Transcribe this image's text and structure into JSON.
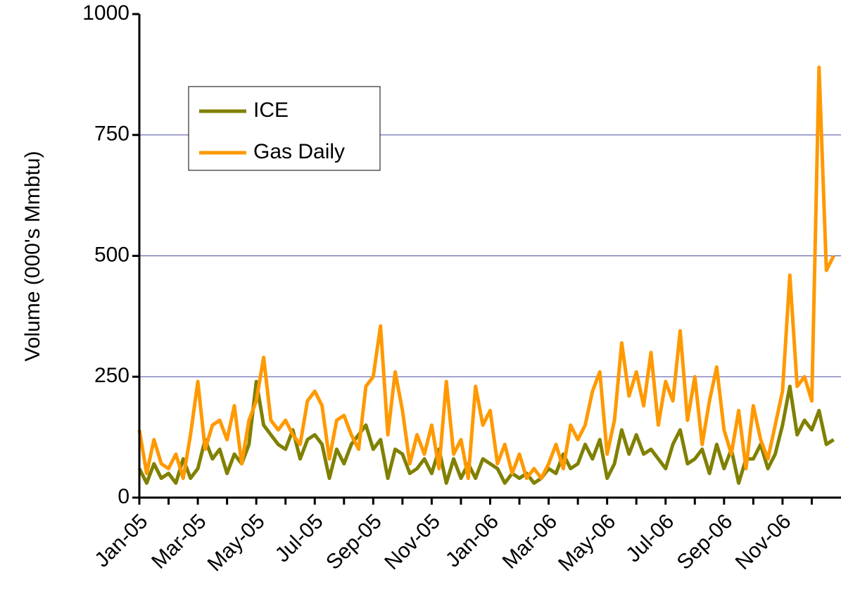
{
  "chart_data": {
    "type": "line",
    "y_label": "Volume (000's Mmbtu)",
    "categories": [
      "Jan-05",
      null,
      null,
      null,
      null,
      null,
      null,
      null,
      "Mar-05",
      null,
      null,
      null,
      null,
      null,
      null,
      null,
      "May-05",
      null,
      null,
      null,
      null,
      null,
      null,
      null,
      "Jul-05",
      null,
      null,
      null,
      null,
      null,
      null,
      null,
      "Sep-05",
      null,
      null,
      null,
      null,
      null,
      null,
      null,
      "Nov-05",
      null,
      null,
      null,
      null,
      null,
      null,
      null,
      "Jan-06",
      null,
      null,
      null,
      null,
      null,
      null,
      null,
      "Mar-06",
      null,
      null,
      null,
      null,
      null,
      null,
      null,
      "May-06",
      null,
      null,
      null,
      null,
      null,
      null,
      null,
      "Jul-06",
      null,
      null,
      null,
      null,
      null,
      null,
      null,
      "Sep-06",
      null,
      null,
      null,
      null,
      null,
      null,
      null,
      "Nov-06",
      null,
      null,
      null,
      null,
      null,
      null,
      null
    ],
    "series": [
      {
        "name": "ICE",
        "color": "#808000",
        "values": [
          60,
          30,
          70,
          40,
          50,
          30,
          80,
          40,
          60,
          120,
          80,
          100,
          50,
          90,
          70,
          110,
          240,
          150,
          130,
          110,
          100,
          140,
          80,
          120,
          130,
          110,
          40,
          100,
          70,
          110,
          130,
          150,
          100,
          120,
          40,
          100,
          90,
          50,
          60,
          80,
          50,
          100,
          30,
          80,
          40,
          70,
          40,
          80,
          70,
          60,
          30,
          50,
          40,
          50,
          30,
          40,
          60,
          50,
          90,
          60,
          70,
          110,
          80,
          120,
          40,
          70,
          140,
          90,
          130,
          90,
          100,
          80,
          60,
          110,
          140,
          70,
          80,
          100,
          50,
          110,
          60,
          100,
          30,
          80,
          80,
          110,
          60,
          90,
          150,
          230,
          130,
          160,
          140,
          180,
          110,
          120
        ]
      },
      {
        "name": "Gas Daily",
        "color": "#ff9900",
        "values": [
          140,
          50,
          120,
          70,
          60,
          90,
          40,
          130,
          240,
          100,
          150,
          160,
          120,
          190,
          70,
          160,
          200,
          290,
          160,
          140,
          160,
          130,
          110,
          200,
          220,
          190,
          80,
          160,
          170,
          130,
          100,
          230,
          250,
          355,
          130,
          260,
          180,
          70,
          130,
          90,
          150,
          60,
          240,
          90,
          120,
          40,
          230,
          150,
          180,
          70,
          110,
          50,
          90,
          40,
          60,
          40,
          70,
          110,
          60,
          150,
          120,
          150,
          220,
          260,
          90,
          160,
          320,
          210,
          260,
          190,
          300,
          150,
          240,
          200,
          345,
          160,
          250,
          110,
          200,
          270,
          140,
          90,
          180,
          60,
          190,
          120,
          80,
          150,
          220,
          460,
          230,
          250,
          200,
          890,
          470,
          500
        ]
      }
    ],
    "ylim": [
      0,
      1000
    ],
    "yticks": [
      0,
      250,
      500,
      750,
      1000
    ],
    "grid": true,
    "legend": "upper left"
  }
}
